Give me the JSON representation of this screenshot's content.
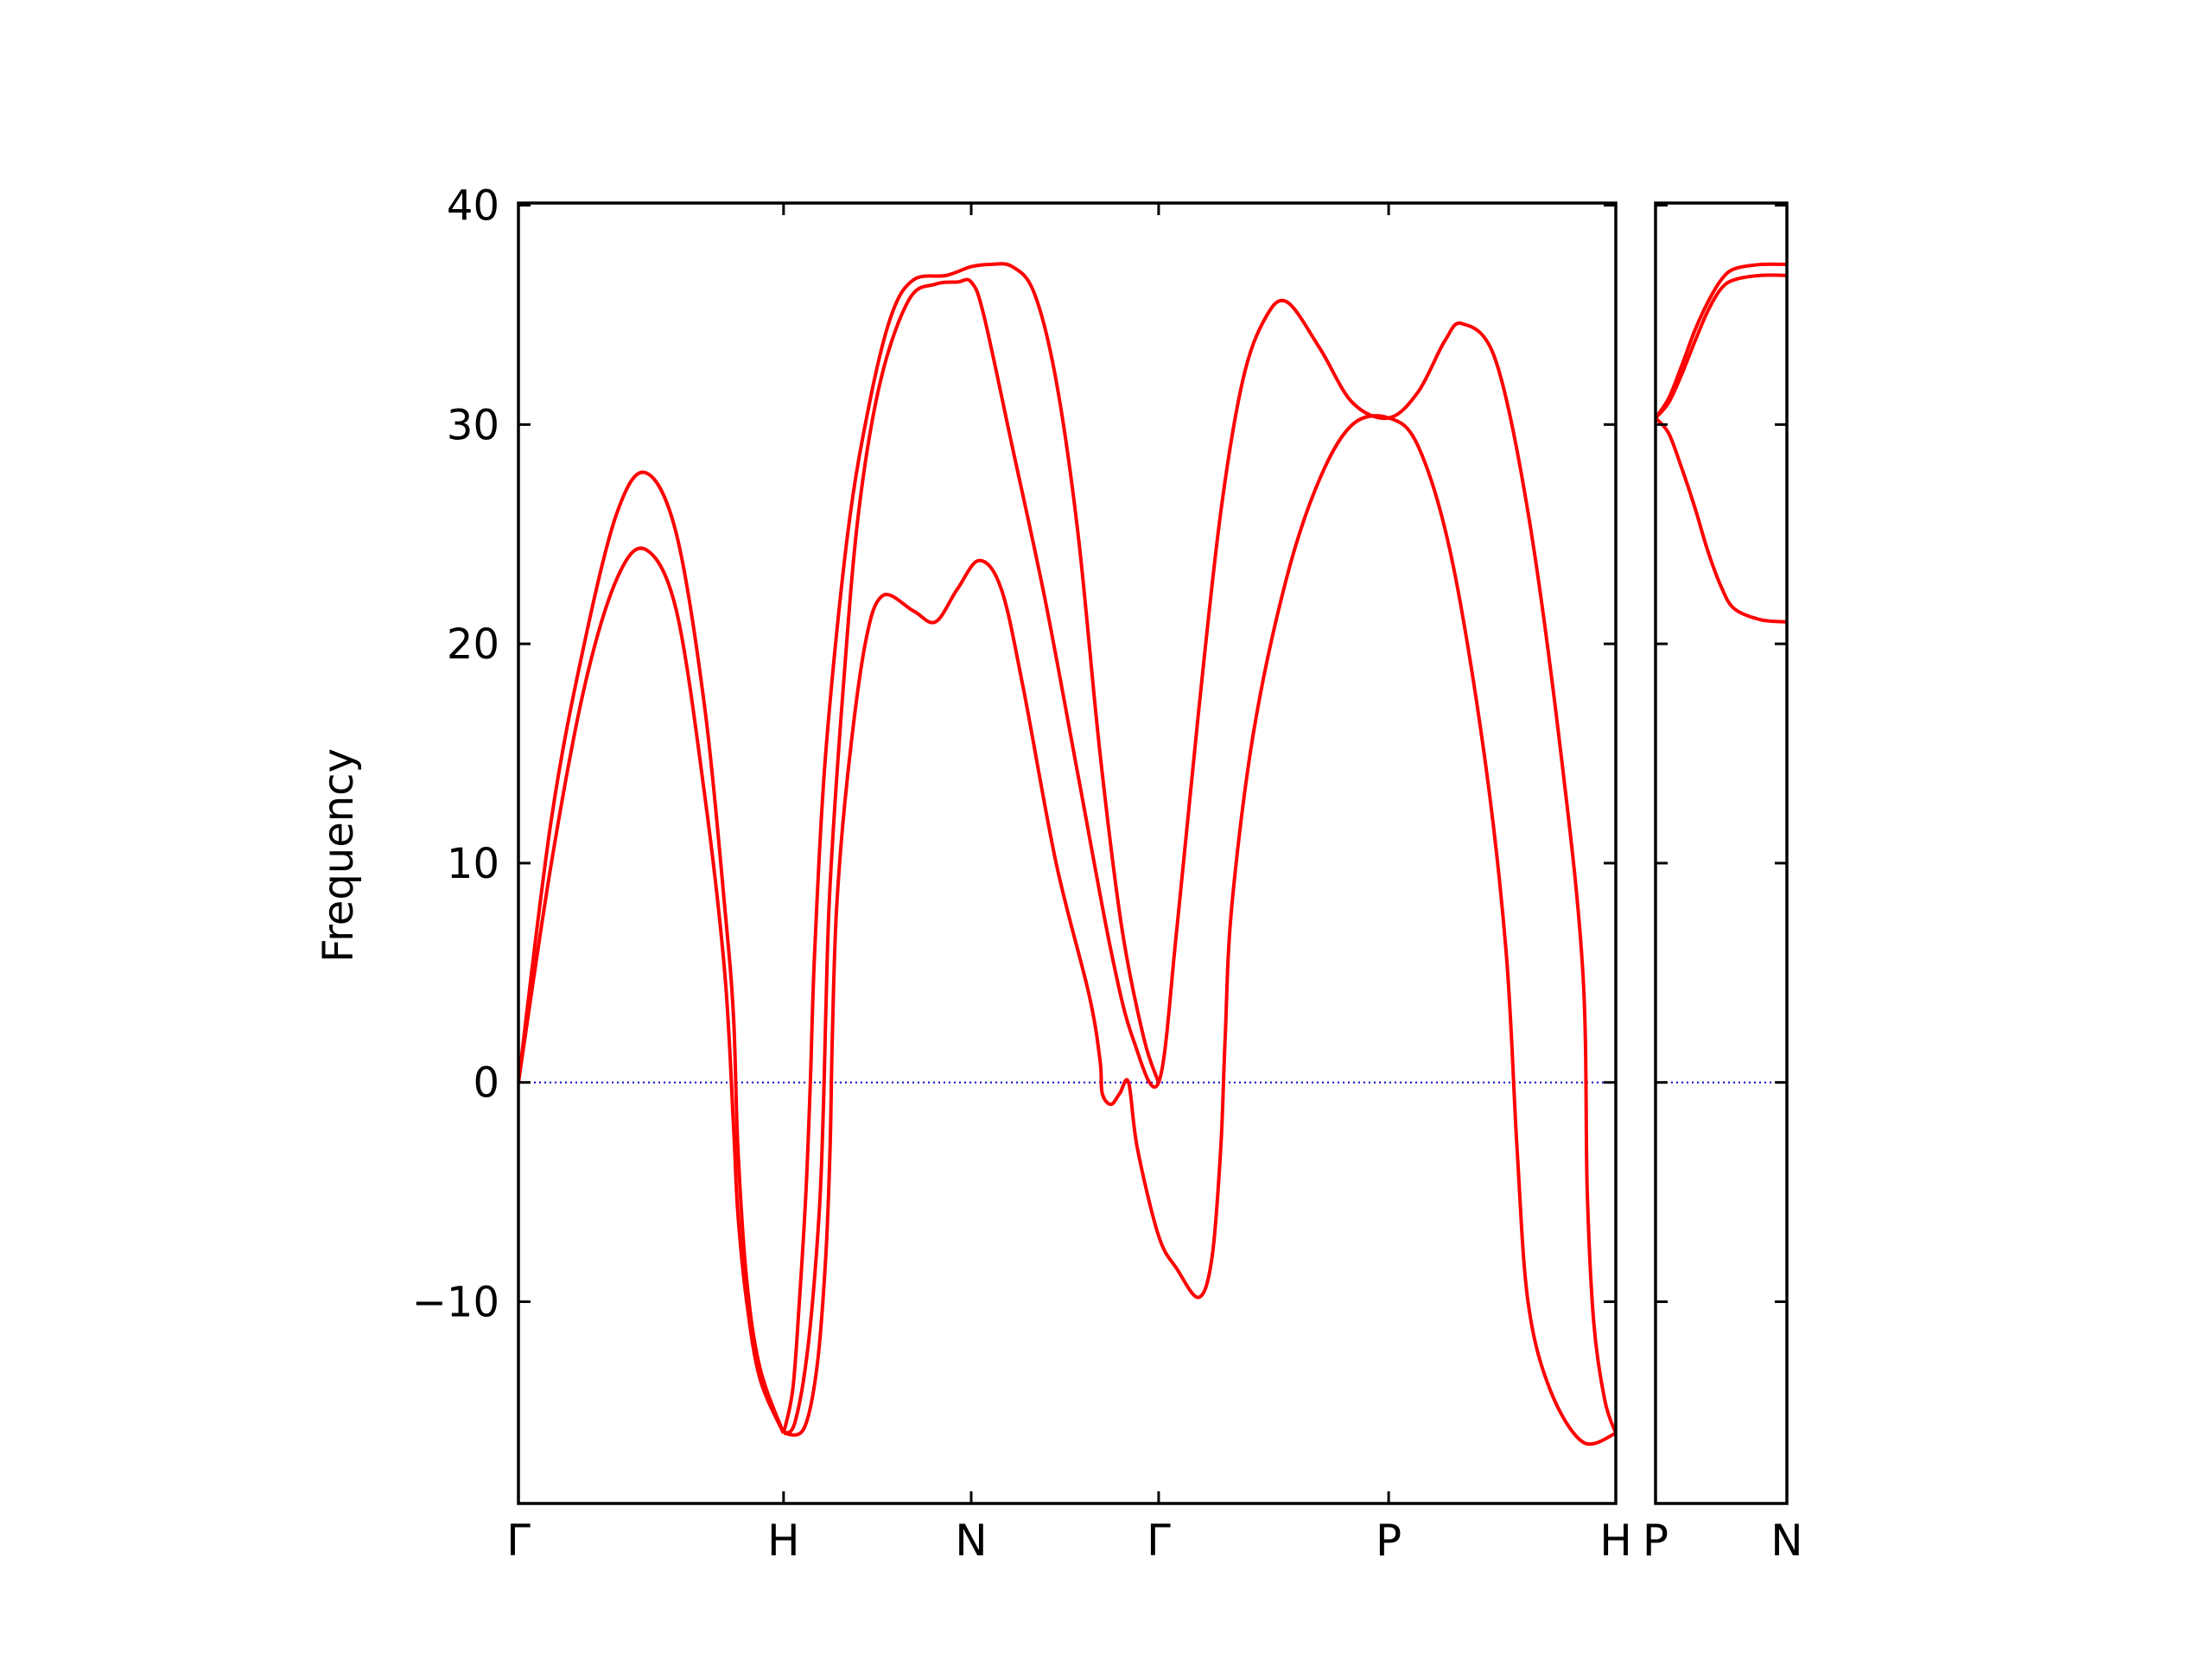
{
  "chart_data": {
    "type": "line",
    "title": "",
    "ylabel": "Frequency",
    "ylim": [
      -19.2,
      40.1
    ],
    "yticks": [
      -10,
      0,
      10,
      20,
      30,
      40
    ],
    "ytick_labels": [
      "−10",
      "0",
      "10",
      "20",
      "30",
      "40"
    ],
    "grid": false,
    "line_color": "#ff0000",
    "zero_line_color": "#0000cc",
    "panels": [
      {
        "name": "path-1",
        "xlim": [
          0,
          5
        ],
        "ticks": [
          {
            "x": 0,
            "label": "Γ"
          },
          {
            "x": 1.208,
            "label": "H"
          },
          {
            "x": 2.063,
            "label": "N"
          },
          {
            "x": 2.917,
            "label": "Γ"
          },
          {
            "x": 3.965,
            "label": "P"
          },
          {
            "x": 5.0,
            "label": "H"
          }
        ],
        "series": [
          {
            "values": [
              [
                0,
                0
              ],
              [
                0.15,
                10
              ],
              [
                0.3,
                18
              ],
              [
                0.45,
                23
              ],
              [
                0.58,
                24.3
              ],
              [
                0.72,
                21.5
              ],
              [
                0.85,
                13
              ],
              [
                0.94,
                5
              ],
              [
                0.98,
                -2
              ],
              [
                1.0,
                -6
              ],
              [
                1.04,
                -10
              ],
              [
                1.1,
                -13.5
              ],
              [
                1.208,
                -16
              ]
            ]
          },
          {
            "values": [
              [
                0,
                0
              ],
              [
                0.15,
                12
              ],
              [
                0.3,
                20
              ],
              [
                0.45,
                26
              ],
              [
                0.58,
                27.8
              ],
              [
                0.72,
                25
              ],
              [
                0.85,
                17
              ],
              [
                0.94,
                8
              ],
              [
                0.98,
                3
              ],
              [
                1.0,
                -3
              ],
              [
                1.04,
                -9
              ],
              [
                1.1,
                -13
              ],
              [
                1.208,
                -16
              ]
            ]
          },
          {
            "values": [
              [
                1.208,
                -16
              ],
              [
                1.3,
                -15.8
              ],
              [
                1.36,
                -13
              ],
              [
                1.4,
                -8
              ],
              [
                1.42,
                -3
              ],
              [
                1.43,
                2
              ],
              [
                1.45,
                8
              ],
              [
                1.5,
                14
              ],
              [
                1.58,
                20
              ],
              [
                1.66,
                22.2
              ],
              [
                1.8,
                21.5
              ],
              [
                1.9,
                21
              ],
              [
                2.0,
                22.5
              ],
              [
                2.1,
                23.8
              ],
              [
                2.2,
                22.5
              ],
              [
                2.3,
                18
              ],
              [
                2.45,
                10
              ],
              [
                2.6,
                4
              ],
              [
                2.65,
                1
              ],
              [
                2.66,
                -0.5
              ],
              [
                2.7,
                -1
              ],
              [
                2.74,
                -0.5
              ],
              [
                2.78,
                0
              ],
              [
                2.82,
                -3
              ],
              [
                2.917,
                -7
              ],
              [
                3.0,
                -8.5
              ],
              [
                3.1,
                -9.8
              ],
              [
                3.16,
                -8
              ],
              [
                3.2,
                -3
              ],
              [
                3.22,
                2
              ],
              [
                3.25,
                8
              ],
              [
                3.35,
                16
              ],
              [
                3.5,
                23
              ],
              [
                3.65,
                27.5
              ],
              [
                3.8,
                30
              ],
              [
                3.965,
                30.3
              ],
              [
                4.1,
                29
              ],
              [
                4.25,
                24
              ],
              [
                4.4,
                15
              ],
              [
                4.5,
                6
              ],
              [
                4.55,
                -3
              ],
              [
                4.6,
                -10
              ],
              [
                4.7,
                -14
              ],
              [
                4.85,
                -16.4
              ],
              [
                5.0,
                -16
              ]
            ]
          },
          {
            "values": [
              [
                1.208,
                -16
              ],
              [
                1.26,
                -15.5
              ],
              [
                1.32,
                -12
              ],
              [
                1.37,
                -6
              ],
              [
                1.39,
                -1
              ],
              [
                1.4,
                3
              ],
              [
                1.42,
                9
              ],
              [
                1.48,
                18
              ],
              [
                1.55,
                26
              ],
              [
                1.65,
                32
              ],
              [
                1.78,
                35.7
              ],
              [
                1.9,
                36.4
              ],
              [
                2.0,
                36.5
              ],
              [
                2.063,
                36.5
              ],
              [
                2.12,
                35
              ],
              [
                2.25,
                29
              ],
              [
                2.4,
                22
              ],
              [
                2.55,
                14
              ],
              [
                2.7,
                6
              ],
              [
                2.8,
                2
              ],
              [
                2.917,
                0
              ],
              [
                3.0,
                7
              ],
              [
                3.1,
                17
              ],
              [
                3.2,
                26
              ],
              [
                3.3,
                32
              ],
              [
                3.4,
                34.8
              ],
              [
                3.5,
                35.6
              ],
              [
                3.65,
                33.5
              ],
              [
                3.8,
                31
              ],
              [
                3.965,
                30.3
              ],
              [
                4.1,
                31.5
              ],
              [
                4.22,
                33.8
              ],
              [
                4.3,
                34.6
              ],
              [
                4.45,
                33
              ],
              [
                4.6,
                26
              ],
              [
                4.75,
                15
              ],
              [
                4.85,
                5
              ],
              [
                4.87,
                -5
              ],
              [
                4.9,
                -11
              ],
              [
                4.95,
                -14.5
              ],
              [
                5.0,
                -16
              ]
            ]
          },
          {
            "values": [
              [
                1.208,
                -16
              ],
              [
                1.25,
                -14
              ],
              [
                1.28,
                -10
              ],
              [
                1.31,
                -5
              ],
              [
                1.33,
                0
              ],
              [
                1.35,
                6
              ],
              [
                1.4,
                15
              ],
              [
                1.5,
                25
              ],
              [
                1.6,
                31
              ],
              [
                1.7,
                35
              ],
              [
                1.8,
                36.6
              ],
              [
                1.95,
                36.8
              ],
              [
                2.063,
                37.2
              ],
              [
                2.15,
                37.3
              ],
              [
                2.25,
                37.2
              ],
              [
                2.35,
                36
              ],
              [
                2.45,
                32
              ],
              [
                2.55,
                25
              ],
              [
                2.65,
                15
              ],
              [
                2.75,
                7
              ],
              [
                2.85,
                2
              ],
              [
                2.917,
                0
              ]
            ]
          }
        ]
      },
      {
        "name": "path-2",
        "xlim": [
          0,
          1
        ],
        "ticks": [
          {
            "x": 0,
            "label": "P"
          },
          {
            "x": 1,
            "label": "N"
          }
        ],
        "series": [
          {
            "values": [
              [
                0,
                30.3
              ],
              [
                0.1,
                29.6
              ],
              [
                0.2,
                28
              ],
              [
                0.3,
                26.2
              ],
              [
                0.4,
                24.2
              ],
              [
                0.5,
                22.6
              ],
              [
                0.6,
                21.6
              ],
              [
                0.8,
                21.1
              ],
              [
                1,
                21
              ]
            ]
          },
          {
            "values": [
              [
                0,
                30.3
              ],
              [
                0.1,
                31
              ],
              [
                0.2,
                32.3
              ],
              [
                0.3,
                33.8
              ],
              [
                0.4,
                35.2
              ],
              [
                0.5,
                36.2
              ],
              [
                0.6,
                36.6
              ],
              [
                0.8,
                36.8
              ],
              [
                1,
                36.8
              ]
            ]
          },
          {
            "values": [
              [
                0,
                30.3
              ],
              [
                0.1,
                31.2
              ],
              [
                0.2,
                32.7
              ],
              [
                0.3,
                34.3
              ],
              [
                0.4,
                35.6
              ],
              [
                0.5,
                36.6
              ],
              [
                0.6,
                37.1
              ],
              [
                0.8,
                37.3
              ],
              [
                1,
                37.3
              ]
            ]
          }
        ]
      }
    ]
  }
}
